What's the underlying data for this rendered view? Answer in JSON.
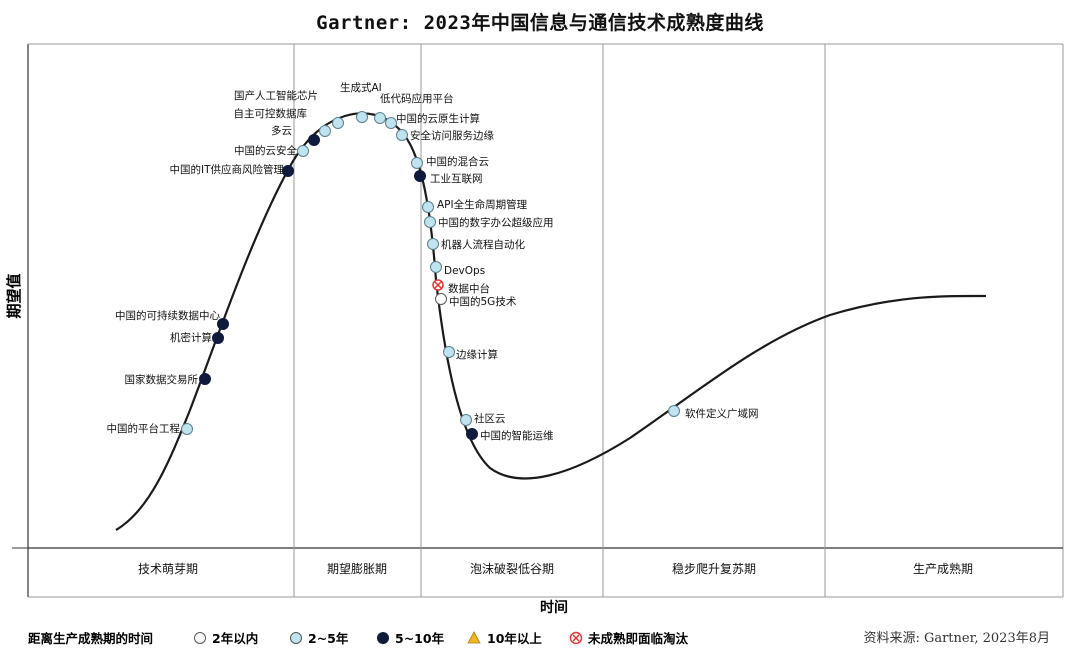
{
  "title": "Gartner: 2023年中国信息与通信技术成熟度曲线",
  "axes": {
    "y": "期望值",
    "x": "时间"
  },
  "phases": [
    "技术萌芽期",
    "期望膨胀期",
    "泡沫破裂低谷期",
    "稳步爬升复苏期",
    "生产成熟期"
  ],
  "legend": {
    "label": "距离生产成熟期的时间",
    "items": [
      {
        "label": "2年以内",
        "marker": "circle-white"
      },
      {
        "label": "2~5年",
        "marker": "circle-lightblue"
      },
      {
        "label": "5~10年",
        "marker": "circle-navy"
      },
      {
        "label": "10年以上",
        "marker": "triangle-gold"
      },
      {
        "label": "未成熟即面临淘汰",
        "marker": "circle-red-x"
      }
    ]
  },
  "source": "资料来源: Gartner, 2023年8月",
  "colors": {
    "white": "#ffffff",
    "lightblue": "#bfe3ef",
    "navy": "#0f1a3c",
    "gold": "#f0b429",
    "red": "#e53935",
    "curve": "#1a1a1a",
    "divider": "#9a9a9a"
  },
  "technologies": [
    {
      "label": "中国的平台工程",
      "category": "2~5年"
    },
    {
      "label": "国家数据交易所",
      "category": "5~10年"
    },
    {
      "label": "机密计算",
      "category": "5~10年"
    },
    {
      "label": "中国的可持续数据中心",
      "category": "5~10年"
    },
    {
      "label": "中国的IT供应商风险管理",
      "category": "5~10年"
    },
    {
      "label": "中国的云安全",
      "category": "2~5年"
    },
    {
      "label": "多云",
      "category": "5~10年"
    },
    {
      "label": "自主可控数据库",
      "category": "2~5年"
    },
    {
      "label": "国产人工智能芯片",
      "category": "2~5年"
    },
    {
      "label": "生成式AI",
      "category": "2~5年"
    },
    {
      "label": "低代码应用平台",
      "category": "2~5年"
    },
    {
      "label": "中国的云原生计算",
      "category": "2~5年"
    },
    {
      "label": "安全访问服务边缘",
      "category": "2~5年"
    },
    {
      "label": "中国的混合云",
      "category": "2~5年"
    },
    {
      "label": "工业互联网",
      "category": "5~10年"
    },
    {
      "label": "API全生命周期管理",
      "category": "2~5年"
    },
    {
      "label": "中国的数字办公超级应用",
      "category": "2~5年"
    },
    {
      "label": "机器人流程自动化",
      "category": "2~5年"
    },
    {
      "label": "DevOps",
      "category": "2~5年"
    },
    {
      "label": "数据中台",
      "category": "未成熟即面临淘汰"
    },
    {
      "label": "中国的5G技术",
      "category": "2年以内"
    },
    {
      "label": "边缘计算",
      "category": "2~5年"
    },
    {
      "label": "社区云",
      "category": "2~5年"
    },
    {
      "label": "中国的智能运维",
      "category": "5~10年"
    },
    {
      "label": "软件定义广域网",
      "category": "2~5年"
    }
  ]
}
